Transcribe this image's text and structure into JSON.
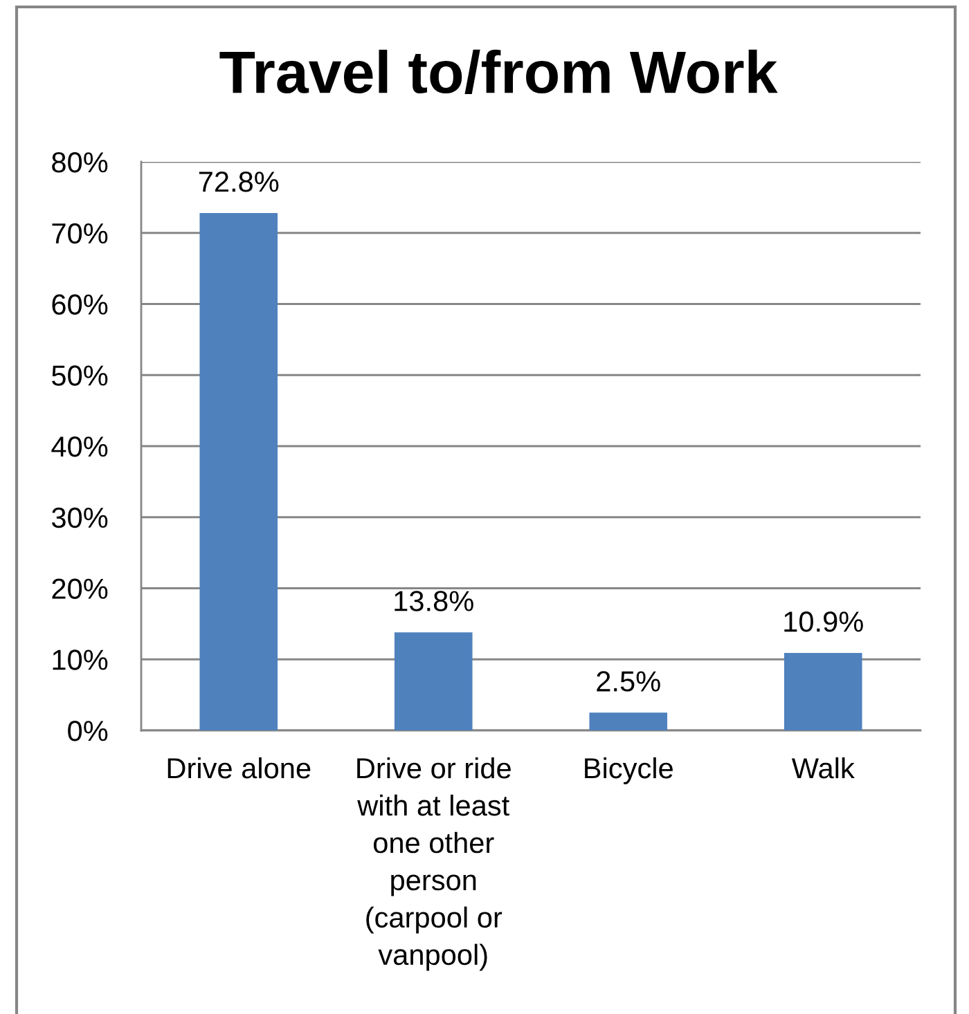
{
  "chart_data": {
    "type": "bar",
    "title": "Travel to/from Work",
    "categories": [
      "Drive alone",
      "Drive or ride with at least one other person (carpool or vanpool)",
      "Bicycle",
      "Walk"
    ],
    "values": [
      72.8,
      13.8,
      2.5,
      10.9
    ],
    "color": "#4f81bd",
    "value_labels": [
      "72.8%",
      "13.8%",
      "2.5%",
      "10.9%"
    ],
    "ylim": [
      0,
      80
    ],
    "yticks": [
      {
        "value": 0,
        "label": "0%"
      },
      {
        "value": 10,
        "label": "10%"
      },
      {
        "value": 20,
        "label": "20%"
      },
      {
        "value": 30,
        "label": "30%"
      },
      {
        "value": 40,
        "label": "40%"
      },
      {
        "value": 50,
        "label": "50%"
      },
      {
        "value": 60,
        "label": "60%"
      },
      {
        "value": 70,
        "label": "70%"
      },
      {
        "value": 80,
        "label": "80%"
      }
    ],
    "grid": "y"
  }
}
